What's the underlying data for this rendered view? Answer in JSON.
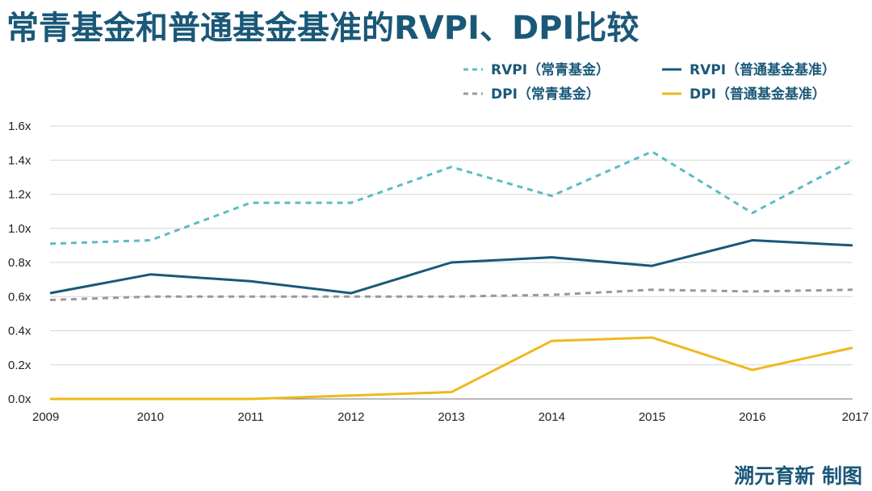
{
  "title": "常青基金和普通基金基准的RVPI、DPI比较",
  "credit": "溯元育新 制图",
  "chart_data": {
    "type": "line",
    "title": "常青基金和普通基金基准的RVPI、DPI比较",
    "xlabel": "",
    "ylabel": "",
    "categories": [
      "2009",
      "2010",
      "2011",
      "2012",
      "2013",
      "2014",
      "2015",
      "2016",
      "2017"
    ],
    "ylim": [
      0,
      1.6
    ],
    "yticks": [
      0,
      0.2,
      0.4,
      0.6,
      0.8,
      1.0,
      1.2,
      1.4,
      1.6
    ],
    "ytick_labels": [
      "0.0x",
      "0.2x",
      "0.4x",
      "0.6x",
      "0.8x",
      "1.0x",
      "1.2x",
      "1.4x",
      "1.6x"
    ],
    "grid": true,
    "legend_position": "top-right",
    "series": [
      {
        "name": "RVPI（常青基金）",
        "color": "#5bbcc4",
        "style": "dashed",
        "values": [
          0.91,
          0.93,
          1.15,
          1.15,
          1.36,
          1.19,
          1.45,
          1.09,
          1.4
        ]
      },
      {
        "name": "RVPI（普通基金基准）",
        "color": "#1a5878",
        "style": "solid",
        "values": [
          0.62,
          0.73,
          0.69,
          0.62,
          0.8,
          0.83,
          0.78,
          0.93,
          0.9
        ]
      },
      {
        "name": "DPI（常青基金）",
        "color": "#999999",
        "style": "dashed",
        "values": [
          0.58,
          0.6,
          0.6,
          0.6,
          0.6,
          0.61,
          0.64,
          0.63,
          0.64
        ]
      },
      {
        "name": "DPI（普通基金基准）",
        "color": "#f0b81c",
        "style": "solid",
        "values": [
          0.0,
          0.0,
          0.0,
          0.02,
          0.04,
          0.34,
          0.36,
          0.17,
          0.3
        ]
      }
    ]
  }
}
